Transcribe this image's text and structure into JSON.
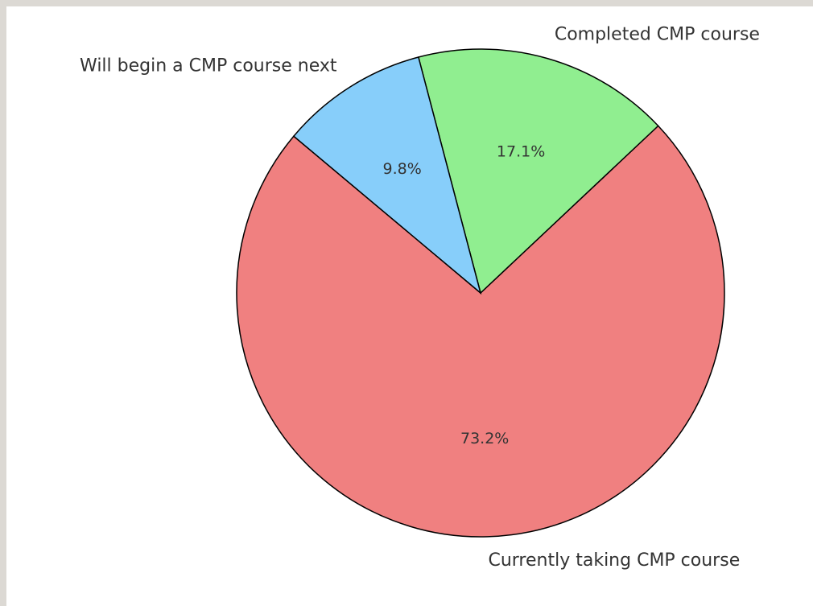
{
  "chart_data": {
    "type": "pie",
    "categories": [
      "Currently taking CMP course",
      "Completed CMP course",
      "Will begin a CMP course next"
    ],
    "values": [
      73.2,
      17.1,
      9.8
    ],
    "value_labels": [
      "73.2%",
      "17.1%",
      "9.8%"
    ],
    "colors": [
      "#f08080",
      "#90ee90",
      "#87cefa"
    ],
    "start_angle": 140,
    "direction": "counterclockwise"
  }
}
